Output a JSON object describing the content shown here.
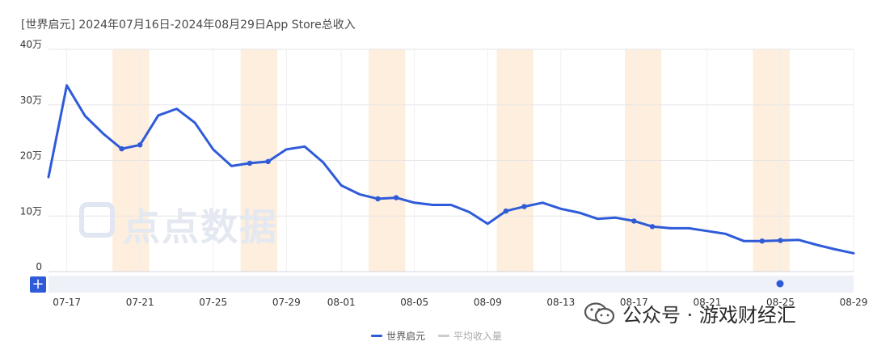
{
  "header": {
    "title": "[世界启元]  2024年07月16日-2024年08月29日App Store总收入"
  },
  "legend": {
    "items": [
      {
        "label": "世界启元",
        "color": "#2f5bd8"
      },
      {
        "label": "平均收入量",
        "color": "#cccccc"
      }
    ]
  },
  "watermark": {
    "text": "点点数据"
  },
  "overlay": {
    "text": "公众号 · 游戏财经汇"
  },
  "controls": {
    "zoom_label": "+"
  },
  "chart_data": {
    "type": "line",
    "title": "",
    "xlabel": "",
    "ylabel": "",
    "ylim": [
      0,
      400000
    ],
    "y_ticks": [
      0,
      100000,
      200000,
      300000,
      400000
    ],
    "y_tick_labels": [
      "0",
      "10万",
      "20万",
      "30万",
      "40万"
    ],
    "x": [
      "07-16",
      "07-17",
      "07-18",
      "07-19",
      "07-20",
      "07-21",
      "07-22",
      "07-23",
      "07-24",
      "07-25",
      "07-26",
      "07-27",
      "07-28",
      "07-29",
      "07-30",
      "07-31",
      "08-01",
      "08-02",
      "08-03",
      "08-04",
      "08-05",
      "08-06",
      "08-07",
      "08-08",
      "08-09",
      "08-10",
      "08-11",
      "08-12",
      "08-13",
      "08-14",
      "08-15",
      "08-16",
      "08-17",
      "08-18",
      "08-19",
      "08-20",
      "08-21",
      "08-22",
      "08-23",
      "08-24",
      "08-25",
      "08-26",
      "08-27",
      "08-28",
      "08-29"
    ],
    "x_tick_labels": [
      "07-17",
      "07-21",
      "07-25",
      "07-29",
      "08-01",
      "08-05",
      "08-09",
      "08-13",
      "08-17",
      "08-21",
      "08-25",
      "08-29"
    ],
    "x_tick_dates": [
      "07-17",
      "07-21",
      "07-25",
      "07-29",
      "08-01",
      "08-05",
      "08-09",
      "08-13",
      "08-17",
      "08-21",
      "08-25",
      "08-29"
    ],
    "grid": true,
    "legend_position": "bottom",
    "series": [
      {
        "name": "世界启元",
        "color": "#2f5bd8",
        "values": [
          170000,
          335000,
          280000,
          248000,
          221000,
          228000,
          281000,
          293000,
          268000,
          220000,
          190000,
          195000,
          198000,
          220000,
          225000,
          197000,
          155000,
          139000,
          131000,
          133000,
          124000,
          120000,
          120000,
          107000,
          86000,
          109000,
          117000,
          124000,
          113000,
          106000,
          95000,
          97000,
          91000,
          81000,
          78000,
          78000,
          73000,
          68000,
          55000,
          55000,
          56000,
          57000,
          48000,
          40000,
          33000
        ],
        "markers": [
          "07-20",
          "07-21",
          "07-27",
          "07-28",
          "08-03",
          "08-04",
          "08-10",
          "08-11",
          "08-17",
          "08-18",
          "08-24",
          "08-25"
        ]
      }
    ],
    "weekend_bands": [
      [
        "07-20",
        "07-21"
      ],
      [
        "07-27",
        "07-28"
      ],
      [
        "08-03",
        "08-04"
      ],
      [
        "08-10",
        "08-11"
      ],
      [
        "08-17",
        "08-18"
      ],
      [
        "08-24",
        "08-25"
      ]
    ],
    "band_color": "#fdeedd"
  }
}
